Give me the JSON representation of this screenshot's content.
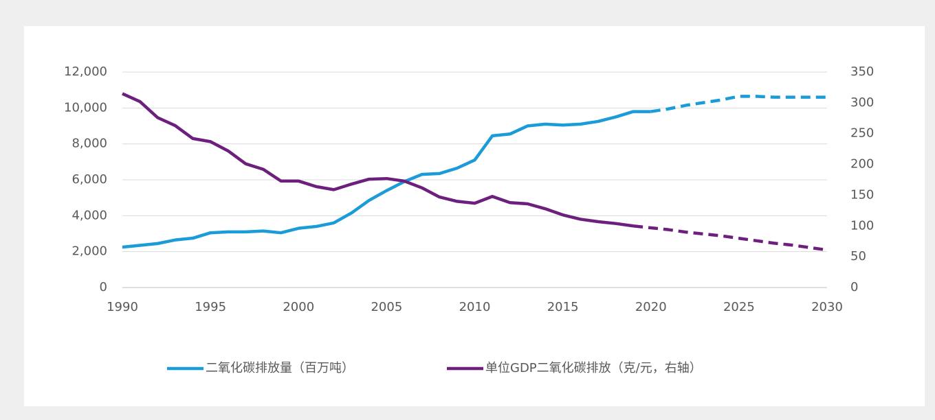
{
  "chart_data": {
    "type": "line",
    "x": [
      1990,
      1991,
      1992,
      1993,
      1994,
      1995,
      1996,
      1997,
      1998,
      1999,
      2000,
      2001,
      2002,
      2003,
      2004,
      2005,
      2006,
      2007,
      2008,
      2009,
      2010,
      2011,
      2012,
      2013,
      2014,
      2015,
      2016,
      2017,
      2018,
      2019,
      2020,
      2021,
      2022,
      2023,
      2024,
      2025,
      2026,
      2027,
      2028,
      2029,
      2030
    ],
    "xlim": [
      1990,
      2030
    ],
    "xticks": [
      1990,
      1995,
      2000,
      2005,
      2010,
      2015,
      2020,
      2025,
      2030
    ],
    "ylim": [
      0,
      12000
    ],
    "yticks": [
      0,
      {
        "value": 2000,
        "label": "2,000"
      },
      {
        "value": 4000,
        "label": "4,000"
      },
      {
        "value": 6000,
        "label": "6,000"
      },
      {
        "value": 8000,
        "label": "8,000"
      },
      {
        "value": 10000,
        "label": "10,000"
      },
      {
        "value": 12000,
        "label": "12,000"
      }
    ],
    "y2lim": [
      0,
      350
    ],
    "y2ticks": [
      0,
      50,
      100,
      150,
      200,
      250,
      300,
      350
    ],
    "grid": true,
    "legend": "bottom",
    "series": [
      {
        "name": "二氧化碳排放量（百万吨）",
        "color": "#1b9bd7",
        "axis": "y",
        "values": [
          2250,
          2350,
          2450,
          2650,
          2750,
          3050,
          3100,
          3100,
          3150,
          3050,
          3300,
          3400,
          3600,
          4150,
          4850,
          5400,
          5900,
          6300,
          6350,
          6650,
          7100,
          8450,
          8550,
          9000,
          9100,
          9050,
          9100,
          9250,
          9500,
          9800,
          9800,
          null,
          null,
          null,
          null,
          null,
          null,
          null,
          null,
          null,
          null
        ],
        "projected_values": [
          null,
          null,
          null,
          null,
          null,
          null,
          null,
          null,
          null,
          null,
          null,
          null,
          null,
          null,
          null,
          null,
          null,
          null,
          null,
          null,
          null,
          null,
          null,
          null,
          null,
          null,
          null,
          null,
          null,
          null,
          9800,
          9950,
          10150,
          10300,
          10450,
          10650,
          10650,
          10600,
          10600,
          10600,
          10600
        ]
      },
      {
        "name": "单位GDP二氧化碳排放（克/元，右轴）",
        "color": "#6c1f7d",
        "axis": "y2",
        "values": [
          315,
          302,
          276,
          263,
          242,
          237,
          222,
          201,
          192,
          173,
          173,
          164,
          159,
          168,
          176,
          177,
          173,
          162,
          147,
          140,
          137,
          148,
          138,
          136,
          128,
          118,
          111,
          107,
          104,
          100,
          null,
          null,
          null,
          null,
          null,
          null,
          null,
          null,
          null,
          null,
          null
        ],
        "projected_values": [
          null,
          null,
          null,
          null,
          null,
          null,
          null,
          null,
          null,
          null,
          null,
          null,
          null,
          null,
          null,
          null,
          null,
          null,
          null,
          null,
          null,
          null,
          null,
          null,
          null,
          null,
          null,
          null,
          null,
          100,
          97,
          94,
          90,
          87,
          84,
          80,
          76,
          72,
          69,
          65,
          61
        ]
      }
    ]
  }
}
